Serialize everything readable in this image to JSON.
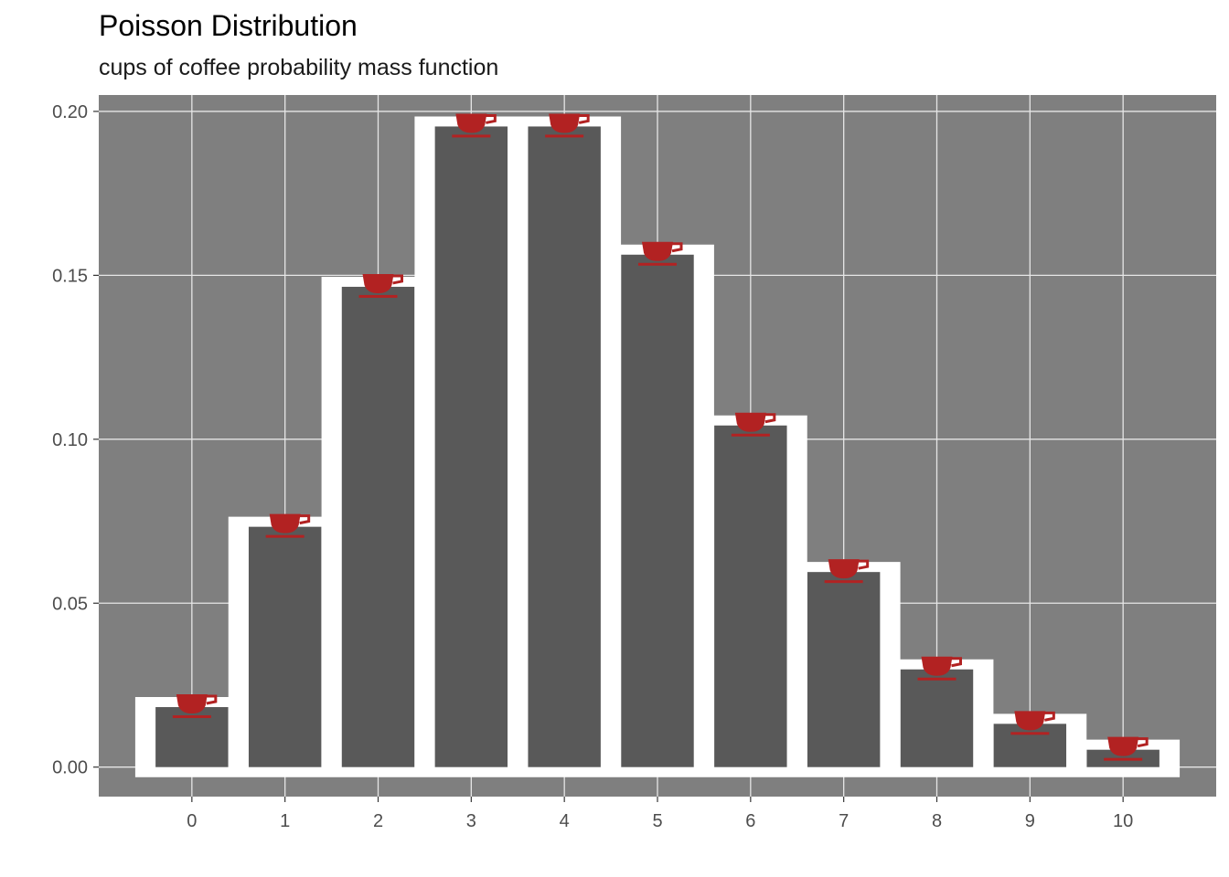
{
  "chart_data": {
    "type": "bar",
    "title": "Poisson Distribution",
    "subtitle": "cups of coffee probability mass function",
    "xlabel": "",
    "ylabel": "",
    "categories": [
      "0",
      "1",
      "2",
      "3",
      "4",
      "5",
      "6",
      "7",
      "8",
      "9",
      "10"
    ],
    "x": [
      0,
      1,
      2,
      3,
      4,
      5,
      6,
      7,
      8,
      9,
      10
    ],
    "values": [
      0.0183,
      0.0733,
      0.1465,
      0.1954,
      0.1954,
      0.1563,
      0.1042,
      0.0595,
      0.0298,
      0.0132,
      0.0053
    ],
    "ylim": [
      -0.009,
      0.205
    ],
    "yticks": [
      0.0,
      0.05,
      0.1,
      0.15,
      0.2
    ],
    "ytick_labels": [
      "0.00",
      "0.05",
      "0.10",
      "0.15",
      "0.20"
    ],
    "grid": true,
    "legend": "none",
    "colors": {
      "panel_background": "#7f7f7f",
      "bar_fill": "#595959",
      "outline": "#ffffff",
      "grid": "#e6e6e6",
      "cup_icon": "#b22222"
    },
    "marker_icon": "coffee-cup-icon"
  }
}
